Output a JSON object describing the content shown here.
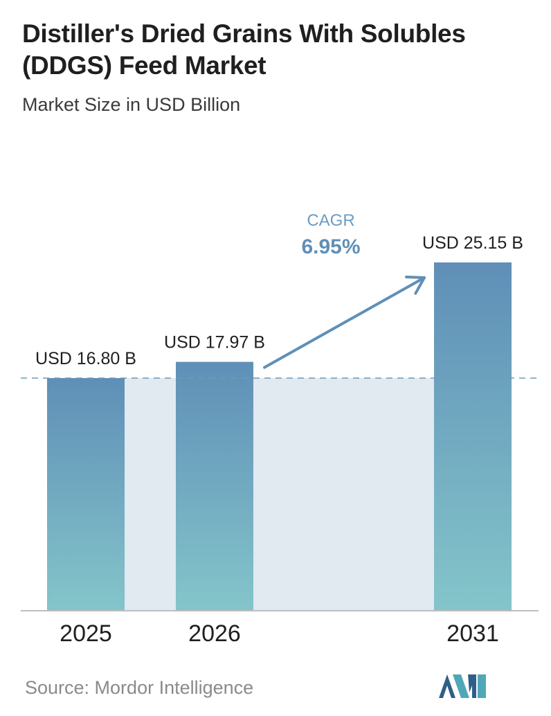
{
  "header": {
    "title": "Distiller's Dried Grains With Solubles (DDGS) Feed Market",
    "subtitle": "Market Size in USD Billion"
  },
  "chart_data": {
    "type": "bar",
    "title": "Distiller's Dried Grains With Solubles (DDGS) Feed Market",
    "subtitle": "Market Size in USD Billion",
    "categories": [
      "2025",
      "2026",
      "2031"
    ],
    "values": [
      16.8,
      17.97,
      25.15
    ],
    "data_labels": [
      "USD 16.80 B",
      "USD 17.97 B",
      "USD 25.15 B"
    ],
    "ylim": [
      0,
      27.5
    ],
    "grid": false,
    "legend": "none",
    "reference_line": 16.8,
    "annotation": {
      "label": "CAGR",
      "value": "6.95%"
    },
    "colors": {
      "bar_top": "#5f8fb7",
      "bar_bottom": "#84c5ca",
      "band": "#e1e9f1",
      "arrow": "#5f8fb7",
      "cagr_label": "#6d9cc2",
      "cagr_value": "#5f8fb7",
      "dashed_line": "#6f9ab8"
    }
  },
  "footer": {
    "source": "Source:  Mordor Intelligence"
  },
  "logo": {
    "icon": "mordor-intelligence-logo-icon"
  }
}
